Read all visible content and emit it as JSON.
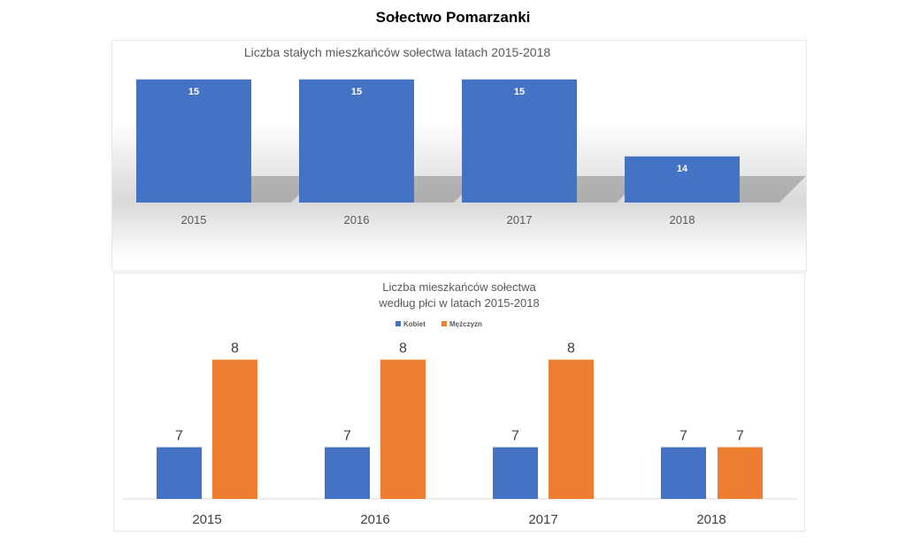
{
  "page_title": "Sołectwo Pomarzanki",
  "chart_data": [
    {
      "type": "bar",
      "title": "Liczba stałych mieszkańców sołectwa latach 2015-2018",
      "categories": [
        "2015",
        "2016",
        "2017",
        "2018"
      ],
      "values": [
        15,
        15,
        15,
        14
      ],
      "ylim": [
        13.4,
        15
      ],
      "color": "#4472c4",
      "legend": "none",
      "grid": false
    },
    {
      "type": "bar",
      "title_lines": [
        "Liczba mieszkańców sołectwa",
        "według płci w latach 2015-2018"
      ],
      "categories": [
        "2015",
        "2016",
        "2017",
        "2018"
      ],
      "series": [
        {
          "name": "Kobiet",
          "values": [
            7,
            7,
            7,
            7
          ],
          "color": "#4472c4"
        },
        {
          "name": "Mężczyzn",
          "values": [
            8,
            8,
            8,
            7
          ],
          "color": "#ed7d31"
        }
      ],
      "ylim": [
        6.41,
        8
      ],
      "legend": "top",
      "grid": false
    }
  ]
}
